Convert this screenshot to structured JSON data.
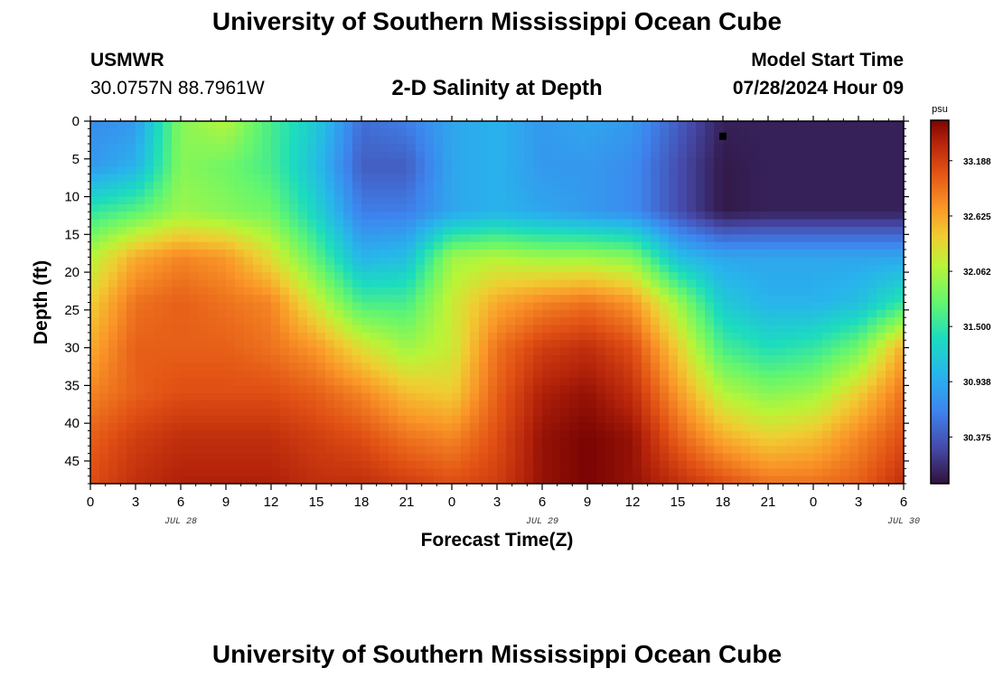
{
  "header": {
    "title": "University of Southern Mississippi Ocean Cube",
    "station": "USMWR",
    "coordinates": "30.0757N  88.7961W",
    "plot_title": "2-D Salinity at Depth",
    "model_start_label": "Model Start Time",
    "model_start_value": "07/28/2024 Hour 09"
  },
  "footer": {
    "title": "University of Southern Mississippi Ocean Cube"
  },
  "chart_data": {
    "type": "heatmap",
    "xlabel": "Forecast Time(Z)",
    "ylabel": "Depth (ft)",
    "x_tick_labels": [
      "0",
      "3",
      "6",
      "9",
      "12",
      "15",
      "18",
      "21",
      "0",
      "3",
      "6",
      "9",
      "12",
      "15",
      "18",
      "21",
      "0",
      "3",
      "6"
    ],
    "date_labels": [
      {
        "label": "JUL 28",
        "hours_from_start": 6
      },
      {
        "label": "JUL 29",
        "hours_from_start": 30
      },
      {
        "label": "JUL 30",
        "hours_from_start": 54
      }
    ],
    "xlim_hours": [
      0,
      54
    ],
    "y_ticks": [
      0,
      5,
      10,
      15,
      20,
      25,
      30,
      35,
      40,
      45
    ],
    "ylim": [
      0,
      48
    ],
    "colorbar": {
      "unit": "psu",
      "tick_labels": [
        "33.188",
        "32.625",
        "32.062",
        "31.500",
        "30.938",
        "30.375"
      ],
      "range": [
        29.9,
        33.6
      ]
    },
    "marker": {
      "hours_from_start": 42,
      "depth": 2
    },
    "salinity_hours": [
      0,
      3,
      6,
      9,
      12,
      15,
      18,
      21,
      24,
      27,
      30,
      33,
      36,
      39,
      42,
      45,
      48,
      51,
      54
    ],
    "salinity_depths": [
      0,
      6,
      12,
      18,
      24,
      30,
      36,
      42,
      48
    ],
    "salinity_grid": [
      [
        30.7,
        30.8,
        31.9,
        32.1,
        31.6,
        31.2,
        30.5,
        30.6,
        30.9,
        31.0,
        30.8,
        30.9,
        30.8,
        30.4,
        30.0,
        30.0,
        30.0,
        30.0,
        30.0
      ],
      [
        30.8,
        31.0,
        31.9,
        31.8,
        31.6,
        31.1,
        30.4,
        30.4,
        30.9,
        31.0,
        30.8,
        30.8,
        30.7,
        30.3,
        29.95,
        30.0,
        30.0,
        30.0,
        30.0
      ],
      [
        31.5,
        31.7,
        32.0,
        31.9,
        31.8,
        31.3,
        30.6,
        30.6,
        30.9,
        31.0,
        30.9,
        30.8,
        30.7,
        30.3,
        29.95,
        30.0,
        30.0,
        30.0,
        30.0
      ],
      [
        32.1,
        32.6,
        32.8,
        32.7,
        32.3,
        31.7,
        31.0,
        31.1,
        32.0,
        32.1,
        32.0,
        32.0,
        31.9,
        31.1,
        30.9,
        30.9,
        30.9,
        30.9,
        30.9
      ],
      [
        32.4,
        32.9,
        33.0,
        32.9,
        32.8,
        32.2,
        31.6,
        31.6,
        32.2,
        32.6,
        32.8,
        32.9,
        32.7,
        32.0,
        31.2,
        31.0,
        31.0,
        31.1,
        31.5
      ],
      [
        32.6,
        33.0,
        33.0,
        33.0,
        32.9,
        32.7,
        32.3,
        32.0,
        32.2,
        32.9,
        33.2,
        33.3,
        33.1,
        32.4,
        31.6,
        31.4,
        31.5,
        31.8,
        32.6
      ],
      [
        32.8,
        33.0,
        33.1,
        33.1,
        33.1,
        33.0,
        32.8,
        32.5,
        32.4,
        33.0,
        33.4,
        33.5,
        33.3,
        32.7,
        32.1,
        31.9,
        32.0,
        32.4,
        32.9
      ],
      [
        33.0,
        33.2,
        33.3,
        33.3,
        33.3,
        33.2,
        33.1,
        32.9,
        32.8,
        33.1,
        33.5,
        33.6,
        33.5,
        33.0,
        32.6,
        32.4,
        32.5,
        32.8,
        33.1
      ],
      [
        33.1,
        33.3,
        33.4,
        33.4,
        33.4,
        33.3,
        33.3,
        33.2,
        33.1,
        33.2,
        33.5,
        33.6,
        33.5,
        33.3,
        33.1,
        32.9,
        32.9,
        33.0,
        33.3
      ]
    ]
  }
}
